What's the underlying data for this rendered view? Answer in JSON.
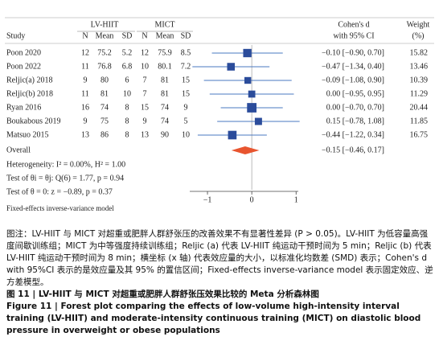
{
  "chart_data": {
    "type": "forest",
    "columns": [
      "Study",
      "N",
      "Mean",
      "SD",
      "N",
      "Mean",
      "SD"
    ],
    "group_labels": [
      "LV-HIIT",
      "MICT"
    ],
    "ci_header": [
      "Cohen's d",
      "with 95% CI"
    ],
    "weight_header": [
      "Weight",
      "(%)"
    ],
    "studies": [
      {
        "name": "Poon 2020",
        "n1": 12,
        "mean1": 75.2,
        "sd1": 5.2,
        "n2": 12,
        "mean2": 75.9,
        "sd2": 8.5,
        "d": -0.1,
        "lo": -0.9,
        "hi": 0.7,
        "ci_label": "−0.10 [−0.90, 0.70]",
        "weight": 15.82
      },
      {
        "name": "Poon 2022",
        "n1": 11,
        "mean1": 76.8,
        "sd1": 6.8,
        "n2": 10,
        "mean2": 80.1,
        "sd2": 7.2,
        "d": -0.47,
        "lo": -1.34,
        "hi": 0.4,
        "ci_label": "−0.47 [−1.34, 0.40]",
        "weight": 13.46
      },
      {
        "name": "Reljic(a) 2018",
        "n1": 9,
        "mean1": 80,
        "sd1": 6,
        "n2": 7,
        "mean2": 81,
        "sd2": 15,
        "d": -0.09,
        "lo": -1.08,
        "hi": 0.9,
        "ci_label": "−0.09 [−1.08, 0.90]",
        "weight": 10.39
      },
      {
        "name": "Reljic(b) 2018",
        "n1": 11,
        "mean1": 81,
        "sd1": 10,
        "n2": 7,
        "mean2": 81,
        "sd2": 15,
        "d": 0.0,
        "lo": -0.95,
        "hi": 0.95,
        "ci_label": "0.00 [−0.95, 0.95]",
        "weight": 11.29
      },
      {
        "name": "Ryan 2016",
        "n1": 16,
        "mean1": 74,
        "sd1": 8,
        "n2": 15,
        "mean2": 74,
        "sd2": 9,
        "d": 0.0,
        "lo": -0.7,
        "hi": 0.7,
        "ci_label": "0.00 [−0.70, 0.70]",
        "weight": 20.44
      },
      {
        "name": "Boukabous 2019",
        "n1": 9,
        "mean1": 75,
        "sd1": 8,
        "n2": 9,
        "mean2": 74,
        "sd2": 5,
        "d": 0.15,
        "lo": -0.78,
        "hi": 1.08,
        "ci_label": "0.15 [−0.78, 1.08]",
        "weight": 11.85
      },
      {
        "name": "Matsuo 2015",
        "n1": 13,
        "mean1": 86,
        "sd1": 8,
        "n2": 13,
        "mean2": 90,
        "sd2": 10,
        "d": -0.44,
        "lo": -1.22,
        "hi": 0.34,
        "ci_label": "−0.44 [−1.22, 0.34]",
        "weight": 16.75
      }
    ],
    "overall": {
      "name": "Overall",
      "d": -0.15,
      "lo": -0.46,
      "hi": 0.17,
      "ci_label": "−0.15 [−0.46, 0.17]"
    },
    "stats": [
      "Heterogeneity: I² = 0.00%, H² = 1.00",
      "Test of θi = θj: Q(6) = 1.77, p = 0.94",
      "Test of θ = 0: z = −0.89, p = 0.37"
    ],
    "xlim": [
      -1.4,
      1.05
    ],
    "xticks": [
      {
        "value": -1,
        "label": "−1"
      },
      0,
      1
    ],
    "note": "Fixed-effects inverse-variance model",
    "marker_color": "#2b4c9b",
    "ci_color": "#4a78c0",
    "diamond_color": "#e8552f"
  },
  "caption": {
    "note": "图注：LV-HIIT 与 MICT 对超重或肥胖人群舒张压的改善效果不有显著性差异 (P > 0.05)。LV-HIIT 为低容量高强度间歇训练组；MICT 为中等强度持续训练组；Reljic (a) 代表 LV-HIIT 纯运动干预时间为 5 min；Reljic (b) 代表 LV-HIIT 纯运动干预时间为 8 min；横坐标 (x 轴) 代表效应量的大小，以标准化均数差 (SMD) 表示；Cohen's d with 95%CI 表示的是效应量及其 95% 的置信区间；Fixed-effects inverse-variance model 表示固定效应、逆方差模型。",
    "title_cn": "图 11 | LV-HIIT 与 MICT 对超重或肥胖人群舒张压效果比较的 Meta 分析森林图",
    "title_en": "Figure 11 | Forest plot comparing the effects of low-volume high-intensity interval training (LV-HIIT) and moderate-intensity continuous training (MICT) on diastolic blood pressure in overweight or obese populations"
  }
}
